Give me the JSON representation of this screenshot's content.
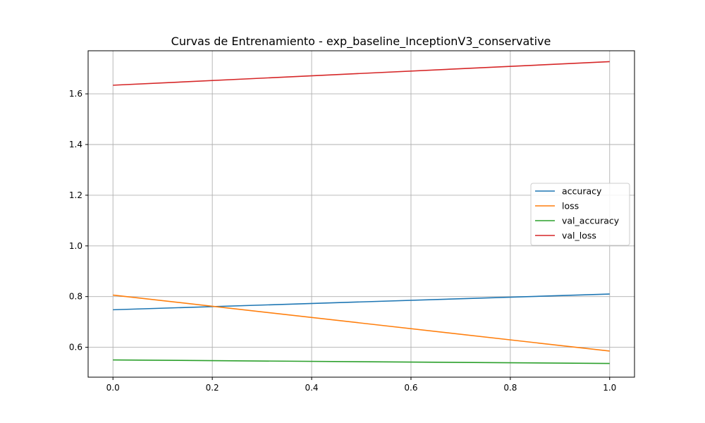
{
  "chart_data": {
    "type": "line",
    "title": "Curvas de Entrenamiento - exp_baseline_InceptionV3_conservative",
    "xlabel": "",
    "ylabel": "",
    "xlim": [
      -0.05,
      1.05
    ],
    "ylim": [
      0.482,
      1.77
    ],
    "grid": true,
    "legend_position": "center-right",
    "x_ticks": [
      "0.0",
      "0.2",
      "0.4",
      "0.6",
      "0.8",
      "1.0"
    ],
    "y_ticks": [
      "0.6",
      "0.8",
      "1.0",
      "1.2",
      "1.4",
      "1.6"
    ],
    "x": [
      0,
      1
    ],
    "series": [
      {
        "name": "accuracy",
        "color": "#1f77b4",
        "values": [
          0.748,
          0.81
        ]
      },
      {
        "name": "loss",
        "color": "#ff7f0e",
        "values": [
          0.806,
          0.585
        ]
      },
      {
        "name": "val_accuracy",
        "color": "#2ca02c",
        "values": [
          0.55,
          0.536
        ]
      },
      {
        "name": "val_loss",
        "color": "#d62728",
        "values": [
          1.634,
          1.727
        ]
      }
    ]
  }
}
